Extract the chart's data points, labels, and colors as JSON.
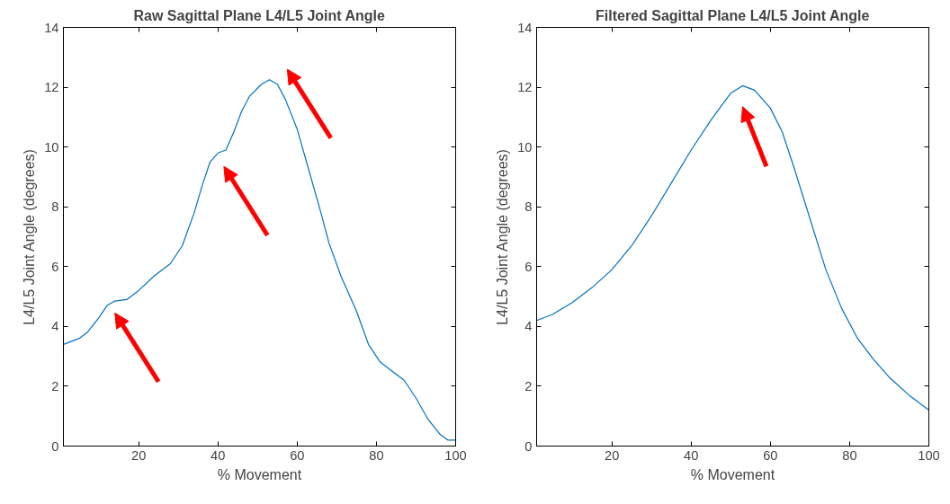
{
  "chart_data": [
    {
      "type": "line",
      "title": "Raw Sagittal Plane L4/L5 Joint Angle",
      "xlabel": "% Movement",
      "ylabel": "L4/L5 Joint Angle (degrees)",
      "x": [
        1,
        5,
        7,
        10,
        12,
        14,
        17,
        20,
        24,
        28,
        31,
        34,
        36,
        38,
        40,
        42,
        44,
        46,
        48,
        51,
        53,
        55,
        57,
        60,
        63,
        66,
        68,
        71,
        75,
        78,
        81,
        84,
        87,
        90,
        93,
        96,
        98,
        100
      ],
      "series": [
        {
          "color": "#0072bd",
          "values": [
            3.4,
            3.6,
            3.8,
            4.3,
            4.7,
            4.85,
            4.9,
            5.2,
            5.7,
            6.1,
            6.7,
            7.8,
            8.7,
            9.5,
            9.8,
            9.9,
            10.5,
            11.2,
            11.7,
            12.1,
            12.25,
            12.1,
            11.6,
            10.6,
            9.2,
            7.8,
            6.8,
            5.7,
            4.5,
            3.4,
            2.8,
            2.5,
            2.2,
            1.6,
            0.9,
            0.4,
            0.2,
            0.2
          ]
        }
      ],
      "xlim": [
        1,
        100
      ],
      "xticks": [
        20,
        40,
        60,
        80,
        100
      ],
      "ylim": [
        0,
        14
      ],
      "yticks": [
        0,
        2,
        4,
        6,
        8,
        10,
        12,
        14
      ],
      "grid": false
    },
    {
      "type": "line",
      "title": "Filtered Sagittal Plane L4/L5 Joint Angle",
      "xlabel": "% Movement",
      "ylabel": "L4/L5 Joint Angle (degrees)",
      "x": [
        1,
        5,
        10,
        15,
        20,
        25,
        30,
        35,
        40,
        45,
        50,
        53,
        56,
        60,
        63,
        66,
        70,
        74,
        78,
        82,
        86,
        90,
        95,
        100
      ],
      "series": [
        {
          "color": "#0072bd",
          "values": [
            4.2,
            4.4,
            4.8,
            5.3,
            5.9,
            6.7,
            7.7,
            8.8,
            9.9,
            10.9,
            11.8,
            12.05,
            11.9,
            11.3,
            10.5,
            9.3,
            7.6,
            5.9,
            4.6,
            3.6,
            2.9,
            2.3,
            1.7,
            1.2
          ]
        }
      ],
      "xlim": [
        1,
        100
      ],
      "xticks": [
        20,
        40,
        60,
        80,
        100
      ],
      "ylim": [
        0,
        14
      ],
      "yticks": [
        0,
        2,
        4,
        6,
        8,
        10,
        12,
        14
      ],
      "grid": false
    }
  ]
}
